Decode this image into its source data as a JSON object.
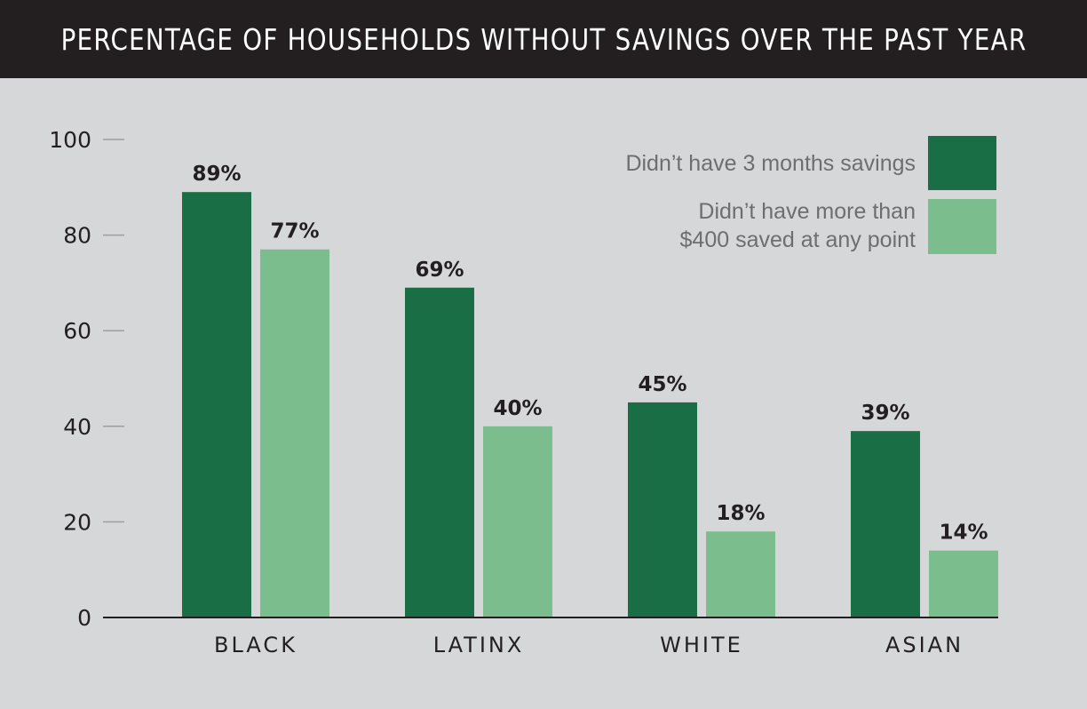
{
  "title": "PERCENTAGE OF HOUSEHOLDS WITHOUT SAVINGS OVER THE PAST YEAR",
  "colors": {
    "dark_green": "#1a6e45",
    "light_green": "#7bbd8c",
    "title_bg": "#231f20",
    "background": "#d6d7d9"
  },
  "chart_data": {
    "type": "bar",
    "categories": [
      "BLACK",
      "LATINX",
      "WHITE",
      "ASIAN"
    ],
    "series": [
      {
        "name": "Didn’t have 3 months savings",
        "values": [
          89,
          69,
          45,
          39
        ],
        "labels": [
          "89%",
          "69%",
          "45%",
          "39%"
        ],
        "color": "#1a6e45"
      },
      {
        "name": "Didn’t have more than $400 saved at any point",
        "legend_lines": [
          "Didn’t have more than",
          "$400 saved at any point"
        ],
        "values": [
          77,
          40,
          18,
          14
        ],
        "labels": [
          "77%",
          "40%",
          "18%",
          "14%"
        ],
        "color": "#7bbd8c"
      }
    ],
    "yticks": [
      "0",
      "20",
      "40",
      "60",
      "80",
      "100"
    ],
    "ylim": [
      0,
      100
    ],
    "grid": false,
    "legend_position": "top-right"
  }
}
